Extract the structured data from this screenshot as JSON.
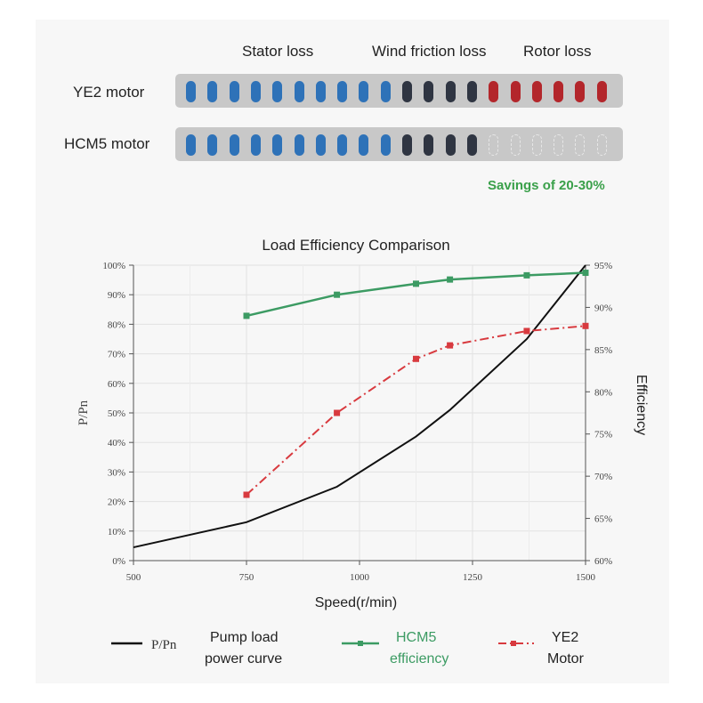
{
  "loss_diagram": {
    "headers": [
      "Stator loss",
      "Wind friction loss",
      "Rotor loss"
    ],
    "motors": [
      {
        "label": "YE2 motor",
        "stator_units": 10,
        "wind_units": 4,
        "rotor_units": 6,
        "saved_units": 0
      },
      {
        "label": "HCM5 motor",
        "stator_units": 10,
        "wind_units": 4,
        "rotor_units": 0,
        "saved_units": 6
      }
    ],
    "savings_text": "Savings of 20-30%",
    "colors": {
      "stator": "#2e72b8",
      "wind": "#2f3542",
      "rotor": "#b3262b",
      "bar_bg": "#c8c8c8",
      "saved_outline": "#e6e6e6"
    }
  },
  "chart_data": {
    "type": "line",
    "title": "Load Efficiency Comparison",
    "xlabel": "Speed(r/min)",
    "ylabel_left": "P/Pn",
    "ylabel_right": "Efficiency",
    "xlim": [
      500,
      1500
    ],
    "xticks": [
      500,
      750,
      1000,
      1250,
      1500
    ],
    "ylim_left": [
      0,
      100
    ],
    "yticks_left": [
      "0%",
      "10%",
      "20%",
      "30%",
      "40%",
      "50%",
      "60%",
      "70%",
      "80%",
      "90%",
      "100%"
    ],
    "ylim_right": [
      60,
      95
    ],
    "yticks_right": [
      "60%",
      "65%",
      "70%",
      "75%",
      "80%",
      "85%",
      "90%",
      "95%"
    ],
    "series": [
      {
        "name": "P/Pn",
        "axis": "left",
        "color": "#111111",
        "style": "solid",
        "marker": "none",
        "x": [
          500,
          750,
          950,
          1125,
          1200,
          1370,
          1500
        ],
        "y": [
          4.5,
          13,
          25,
          42,
          51,
          75,
          100
        ]
      },
      {
        "name": "HCM5 efficiency",
        "axis": "right",
        "color": "#3c9b63",
        "style": "solid",
        "marker": "square",
        "x": [
          750,
          950,
          1125,
          1200,
          1370,
          1500
        ],
        "y": [
          89,
          91.5,
          92.8,
          93.3,
          93.8,
          94.1
        ]
      },
      {
        "name": "YE2 Motor",
        "axis": "right",
        "color": "#d83a3f",
        "style": "dashdot",
        "marker": "square",
        "x": [
          750,
          950,
          1125,
          1200,
          1370,
          1500
        ],
        "y": [
          67.8,
          77.5,
          83.9,
          85.5,
          87.2,
          87.8
        ]
      }
    ],
    "legend": [
      {
        "symbol_text": "P/Pn",
        "label_line1": "Pump load",
        "label_line2": "power curve",
        "color": "#111111"
      },
      {
        "label_line1": "HCM5",
        "label_line2": "efficiency",
        "color": "#3c9b63"
      },
      {
        "label_line1": "YE2",
        "label_line2": "Motor",
        "color": "#d83a3f"
      }
    ]
  }
}
